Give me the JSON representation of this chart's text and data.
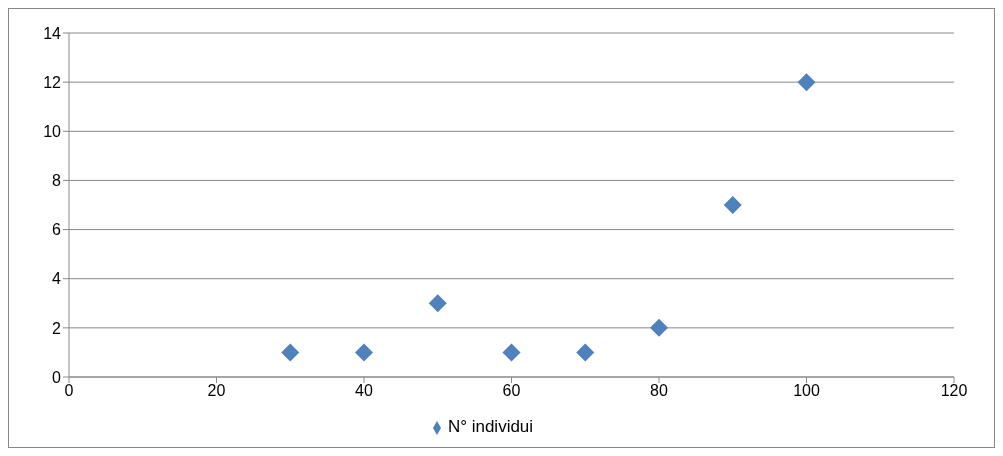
{
  "chart_data": {
    "type": "scatter",
    "x": [
      30,
      40,
      50,
      60,
      70,
      80,
      90,
      100
    ],
    "series": [
      {
        "name": "N° individui",
        "color": "#4f81bd",
        "values": [
          1,
          1,
          3,
          1,
          1,
          2,
          7,
          12
        ]
      }
    ],
    "xlim": [
      0,
      120
    ],
    "xticks": [
      0,
      20,
      40,
      60,
      80,
      100,
      120
    ],
    "ylim": [
      0,
      14
    ],
    "yticks": [
      0,
      2,
      4,
      6,
      8,
      10,
      12,
      14
    ],
    "grid": "y",
    "legend": "bottom",
    "marker": "diamond"
  }
}
